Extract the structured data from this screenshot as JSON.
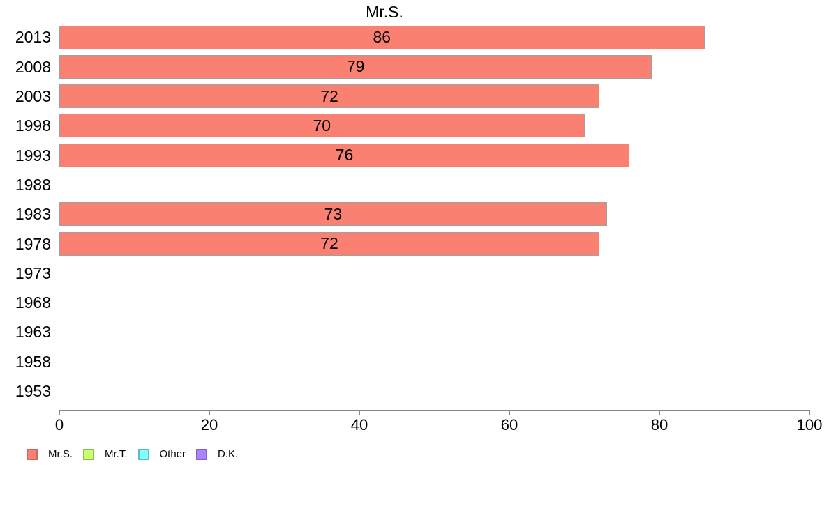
{
  "chart_data": {
    "type": "bar",
    "orientation": "horizontal",
    "title": "Mr.S.",
    "categories": [
      "2013",
      "2008",
      "2003",
      "1998",
      "1993",
      "1988",
      "1983",
      "1978",
      "1973",
      "1968",
      "1963",
      "1958",
      "1953"
    ],
    "values": [
      86,
      79,
      72,
      70,
      76,
      null,
      73,
      72,
      null,
      null,
      null,
      null,
      null
    ],
    "value_labels": [
      "86",
      "79",
      "72",
      "70",
      "76",
      "",
      "73",
      "72",
      "",
      "",
      "",
      "",
      ""
    ],
    "xlim": [
      0,
      100
    ],
    "x_ticks": [
      0,
      20,
      40,
      60,
      80,
      100
    ],
    "x_tick_labels": [
      "0",
      "20",
      "40",
      "60",
      "80",
      "100"
    ],
    "grid": false,
    "bar_color": "#FA8072",
    "bar_border_color": "#A0A0A0",
    "axis_color": "#888888",
    "legend_position": "bottom-left",
    "legend": [
      {
        "label": "Mr.S.",
        "color": "#FA8072",
        "border": "#C96A60"
      },
      {
        "label": "Mr.T.",
        "color": "#CAFF70",
        "border": "#8FBC4E"
      },
      {
        "label": "Other",
        "color": "#7FFFFF",
        "border": "#5CBFBF"
      },
      {
        "label": "D.K.",
        "color": "#AB82FF",
        "border": "#8163BF"
      }
    ]
  }
}
